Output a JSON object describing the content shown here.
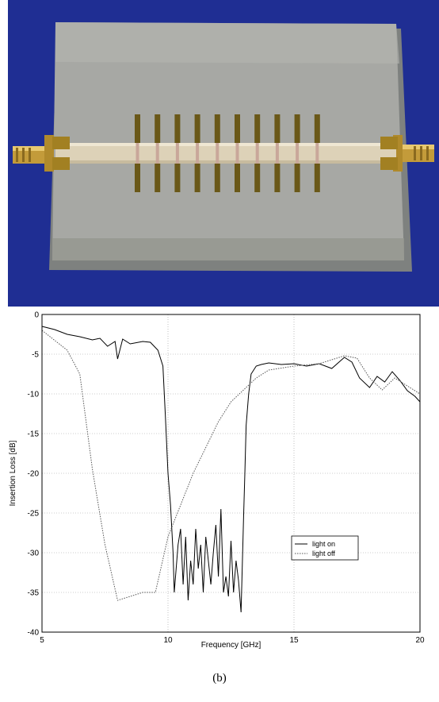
{
  "colors": {
    "photo_background": "#1f2e93",
    "board": "#a7a8a4",
    "strip": "#ddd2b8",
    "pad_gold": "#a28022",
    "line_on": "#000000",
    "line_off": "#555555"
  },
  "caption": "(b)",
  "chart_data": {
    "type": "line",
    "xlabel": "Frequency [GHz]",
    "ylabel": "Insertion Loss [dB]",
    "xlim": [
      5,
      20
    ],
    "ylim": [
      -40,
      0
    ],
    "xticks": [
      5,
      10,
      15,
      20
    ],
    "yticks": [
      0,
      -5,
      -10,
      -15,
      -20,
      -25,
      -30,
      -35,
      -40
    ],
    "grid": true,
    "legend_position": "center-right",
    "series": [
      {
        "name": "light on",
        "style": "solid",
        "x": [
          5,
          5.5,
          6,
          6.5,
          7,
          7.3,
          7.6,
          7.9,
          8.0,
          8.2,
          8.5,
          9.0,
          9.3,
          9.6,
          9.8,
          9.9,
          10.0,
          10.1,
          10.2,
          10.25,
          10.3,
          10.4,
          10.5,
          10.6,
          10.7,
          10.8,
          10.9,
          11.0,
          11.1,
          11.2,
          11.3,
          11.4,
          11.5,
          11.6,
          11.7,
          11.8,
          11.9,
          12.0,
          12.1,
          12.2,
          12.3,
          12.4,
          12.5,
          12.6,
          12.7,
          12.8,
          12.9,
          13.0,
          13.05,
          13.1,
          13.2,
          13.3,
          13.5,
          13.7,
          14.0,
          14.5,
          15.0,
          15.5,
          16.0,
          16.5,
          17.0,
          17.3,
          17.6,
          18.0,
          18.3,
          18.6,
          18.9,
          19.2,
          19.5,
          19.8,
          20.0
        ],
        "y": [
          -1.5,
          -1.9,
          -2.5,
          -2.8,
          -3.2,
          -3.0,
          -4.0,
          -3.4,
          -5.6,
          -3.1,
          -3.7,
          -3.4,
          -3.5,
          -4.5,
          -6.5,
          -13.0,
          -20.0,
          -24.0,
          -30.0,
          -35.0,
          -33.0,
          -29.0,
          -27.0,
          -34.0,
          -28.0,
          -36.0,
          -31.0,
          -34.0,
          -27.0,
          -32.0,
          -29.0,
          -35.0,
          -28.0,
          -31.0,
          -34.0,
          -30.0,
          -26.5,
          -33.0,
          -24.5,
          -35.0,
          -33.0,
          -35.5,
          -28.5,
          -35.0,
          -31.0,
          -33.5,
          -37.5,
          -25.5,
          -20.0,
          -14.0,
          -10.0,
          -7.5,
          -6.5,
          -6.3,
          -6.1,
          -6.3,
          -6.2,
          -6.5,
          -6.2,
          -6.8,
          -5.4,
          -6.0,
          -8.0,
          -9.2,
          -7.8,
          -8.5,
          -7.2,
          -8.3,
          -9.6,
          -10.3,
          -11.0
        ]
      },
      {
        "name": "light off",
        "style": "dotted",
        "x": [
          5,
          6,
          6.5,
          7,
          7.5,
          8,
          9,
          9.5,
          10,
          11,
          12,
          12.5,
          13,
          13.5,
          14,
          15,
          16,
          17,
          17.5,
          18,
          18.5,
          19,
          19.5,
          20
        ],
        "y": [
          -2,
          -4.5,
          -7.5,
          -19.5,
          -29.0,
          -36.0,
          -35.0,
          -35.0,
          -28.0,
          -20.0,
          -13.5,
          -11.0,
          -9.5,
          -8.0,
          -7.0,
          -6.5,
          -6.2,
          -5.2,
          -5.5,
          -8.0,
          -9.5,
          -8.0,
          -9.0,
          -10.0
        ]
      }
    ]
  }
}
